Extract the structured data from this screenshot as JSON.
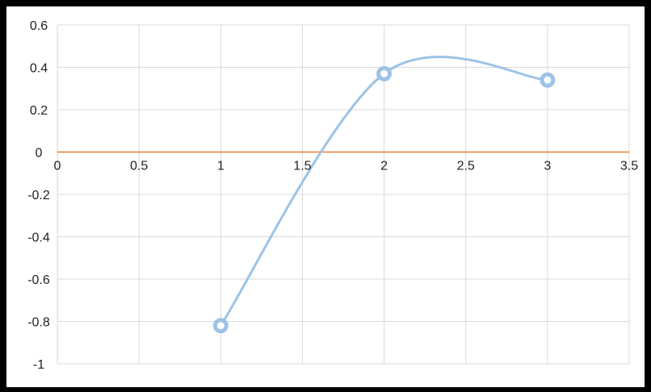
{
  "chart_data": {
    "type": "scatter",
    "title": "",
    "xlabel": "",
    "ylabel": "",
    "xlim": [
      0,
      3.5
    ],
    "ylim": [
      -1,
      0.6
    ],
    "x_ticks": [
      0,
      0.5,
      1,
      1.5,
      2,
      2.5,
      3,
      3.5
    ],
    "x_tick_labels": [
      "0",
      "0.5",
      "1",
      "1.5",
      "2",
      "2.5",
      "3",
      "3.5"
    ],
    "y_ticks": [
      -1,
      -0.8,
      -0.6,
      -0.4,
      -0.2,
      0,
      0.2,
      0.4,
      0.6
    ],
    "y_tick_labels": [
      "-1",
      "-0.8",
      "-0.6",
      "-0.4",
      "-0.2",
      "0",
      "0.2",
      "0.4",
      "0.6"
    ],
    "grid": true,
    "legend": "none",
    "series": [
      {
        "smooth": true,
        "color": "#9dc3e6",
        "x": [
          1,
          2,
          3
        ],
        "y": [
          -0.82,
          0.37,
          0.34
        ]
      }
    ],
    "reference_line": {
      "y": 0,
      "color": "#ed7d31"
    }
  }
}
